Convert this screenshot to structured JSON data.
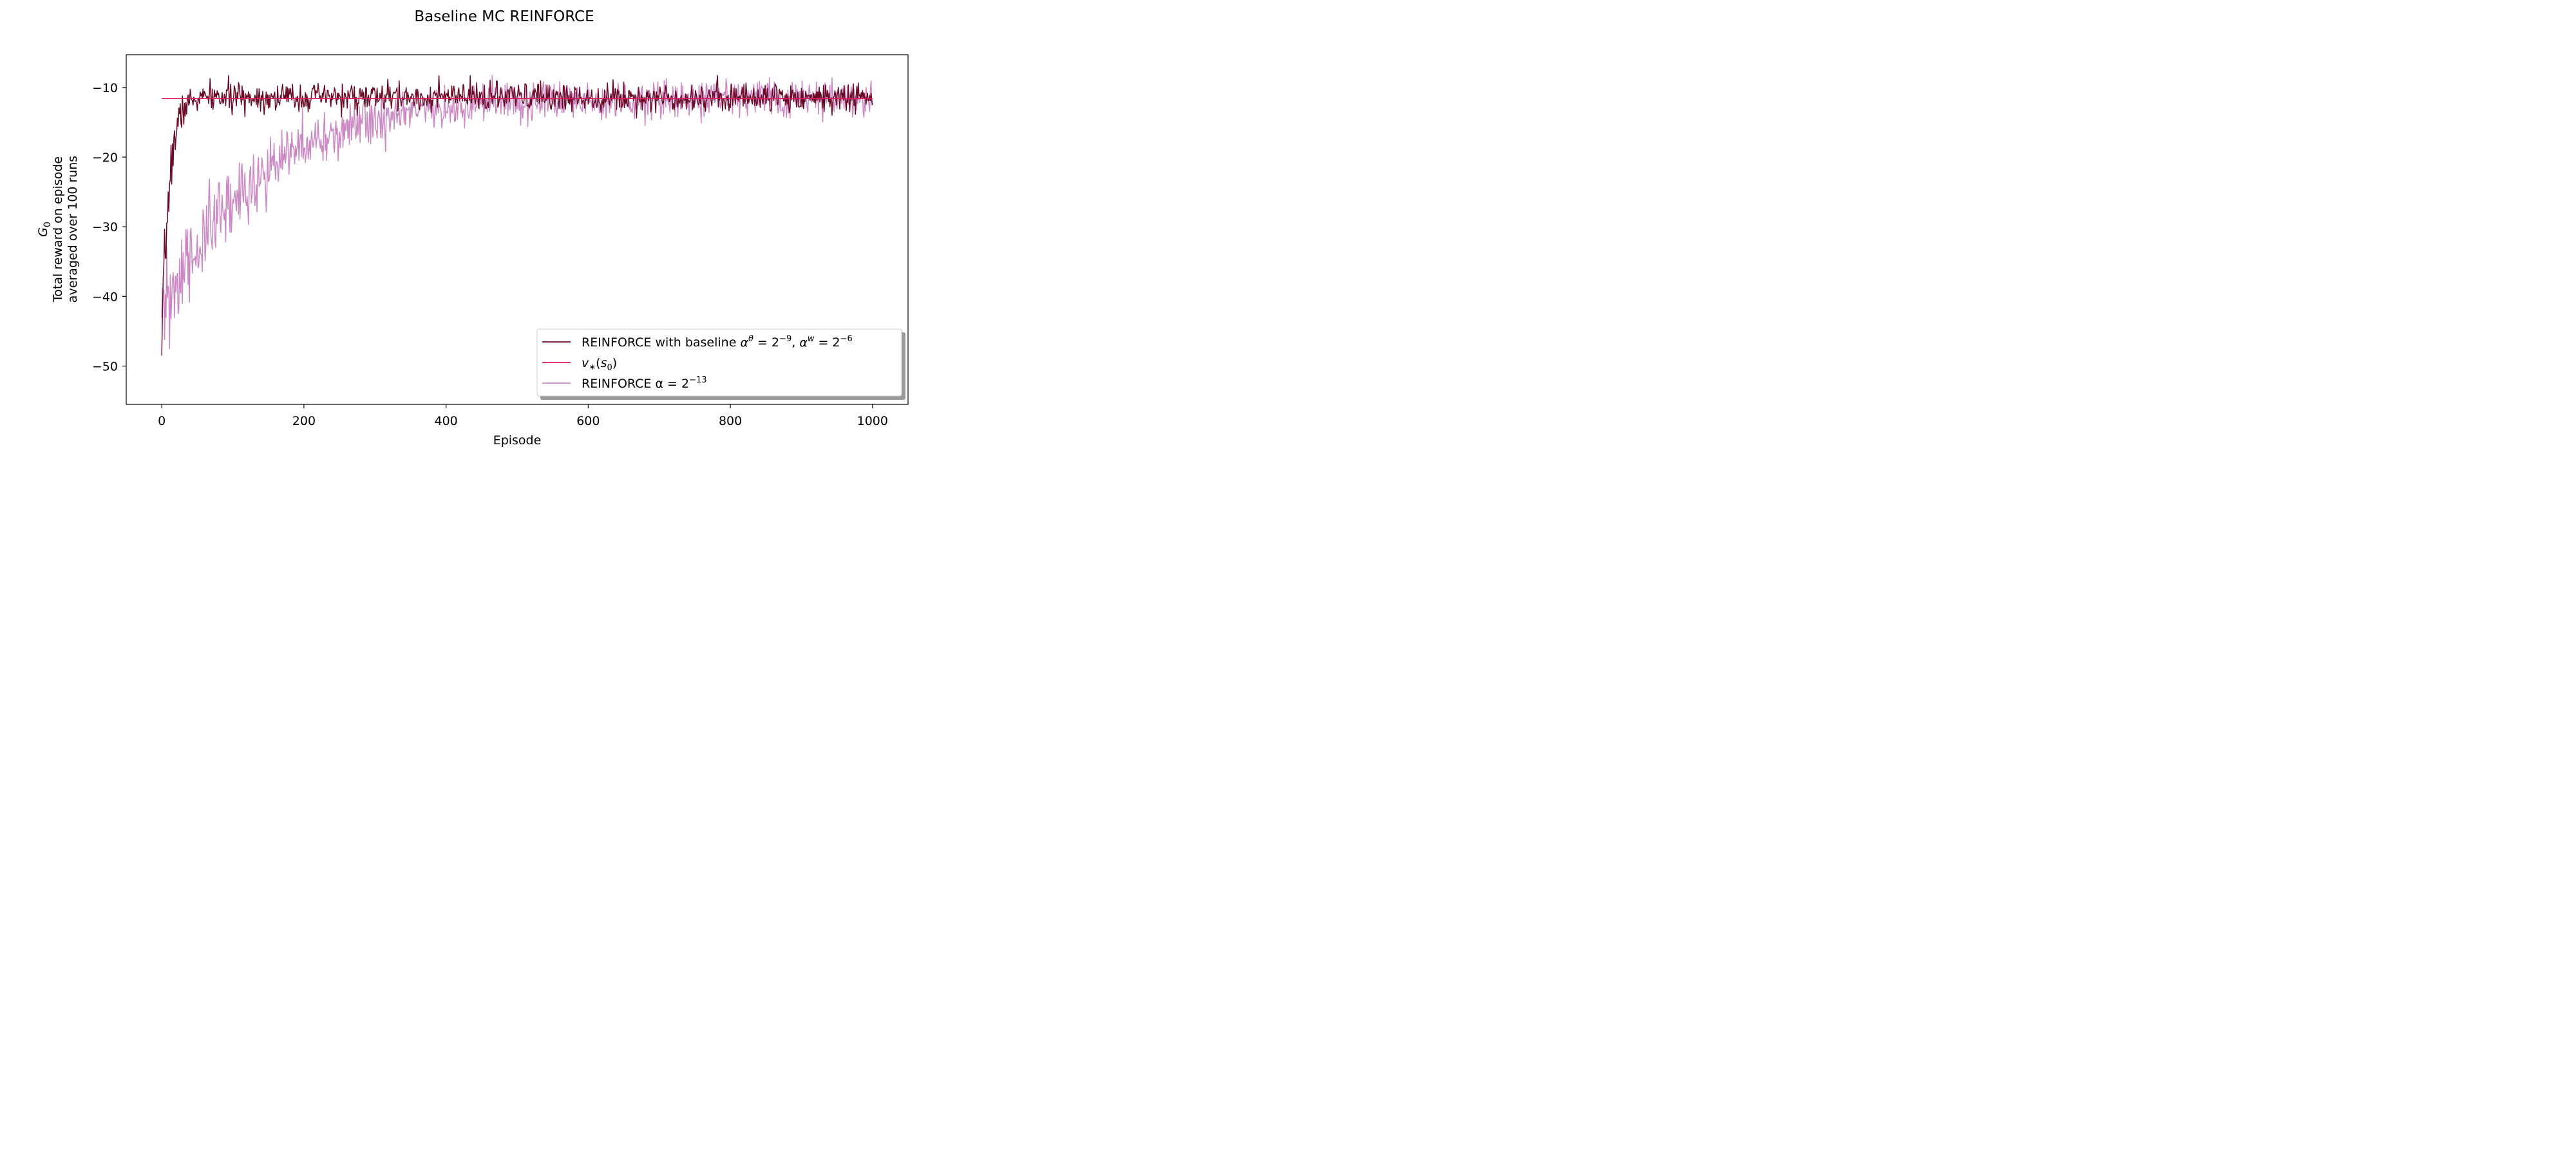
{
  "chart_data": {
    "type": "line",
    "title": "Baseline MC REINFORCE",
    "xlabel": "Episode",
    "ylabel": [
      "G_0",
      "Total reward on episode",
      "averaged over 100 runs"
    ],
    "xlim": [
      -50,
      1050
    ],
    "ylim": [
      -55.5,
      -5.3
    ],
    "xticks": [
      0,
      200,
      400,
      600,
      800,
      1000
    ],
    "yticks": [
      -50,
      -40,
      -30,
      -20,
      -10
    ],
    "grid": false,
    "legend_position": "lower-right",
    "colors": {
      "baseline": "#6b0a25",
      "vstar": "#dd1c60",
      "plain": "#cc88c4"
    },
    "legend": {
      "baseline": {
        "text": "REINFORCE with baseline",
        "a_sup_theta": "θ",
        "a_sup_w": "w",
        "lr_theta_exp": "−9",
        "lr_w_exp": "−6"
      },
      "vstar": {
        "text": "v*(s0)"
      },
      "plain": {
        "prefix": "REINFORCE α = 2",
        "exp": "−13"
      }
    },
    "series": [
      {
        "name": "REINFORCE with baseline α^θ = 2^−9, α^w = 2^−6",
        "key": "baseline",
        "model": {
          "start": -48.5,
          "asymptote": -11.4,
          "tau": 10,
          "noise": 1.0,
          "episodes": 1000,
          "seed": 7
        }
      },
      {
        "name": "v*(s0)",
        "key": "vstar",
        "x": [
          0,
          1000
        ],
        "y": [
          -11.6,
          -11.6
        ]
      },
      {
        "name": "REINFORCE α = 2^−13",
        "key": "plain",
        "model": {
          "start": -43,
          "asymptote": -11.4,
          "tau": 135,
          "noise": 1.25,
          "episodes": 1000,
          "seed": 31
        }
      }
    ]
  }
}
